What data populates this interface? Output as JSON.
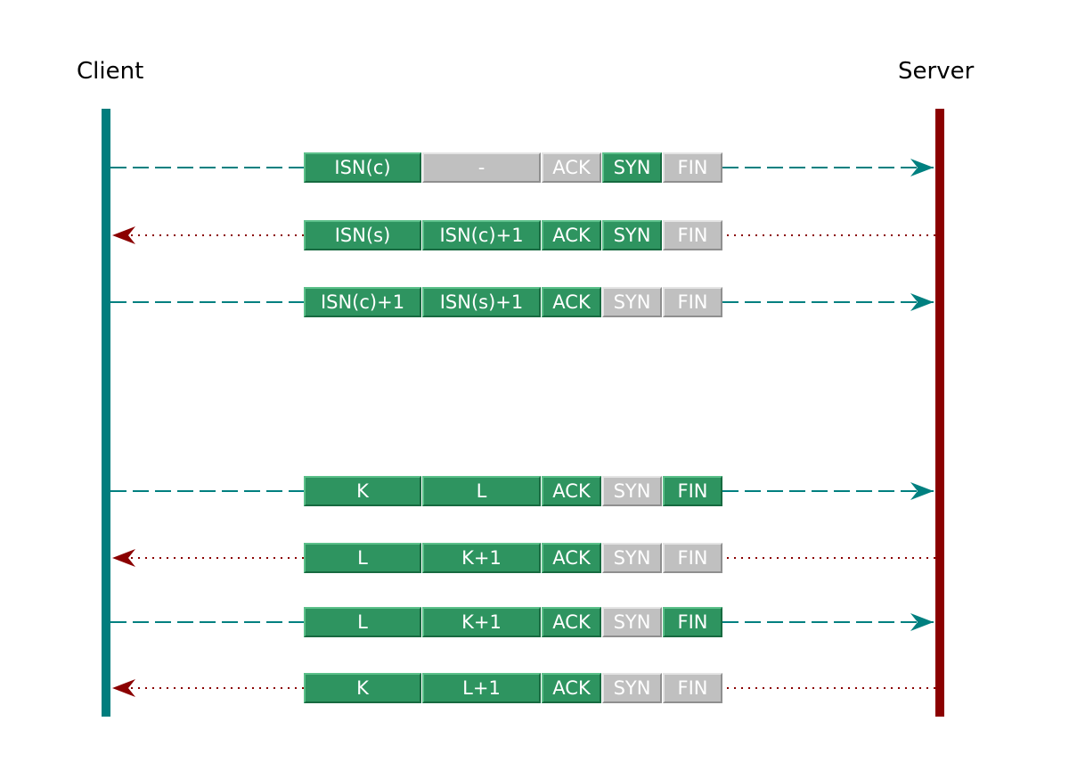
{
  "endpoints": {
    "client": {
      "label": "Client",
      "color": "#007d7d"
    },
    "server": {
      "label": "Server",
      "color": "#8b0000"
    }
  },
  "colors": {
    "field_active": "#2e9460",
    "field_inactive": "#c0c0c0",
    "to_server_arrow": "#008080",
    "to_client_arrow": "#8b0000"
  },
  "flags": [
    "ACK",
    "SYN",
    "FIN"
  ],
  "segments": [
    {
      "direction": "to-server",
      "seq": "ISN(c)",
      "ack": "-",
      "seq_active": true,
      "ack_active": false,
      "ACK": false,
      "SYN": true,
      "FIN": false
    },
    {
      "direction": "to-client",
      "seq": "ISN(s)",
      "ack": "ISN(c)+1",
      "seq_active": true,
      "ack_active": true,
      "ACK": true,
      "SYN": true,
      "FIN": false
    },
    {
      "direction": "to-server",
      "seq": "ISN(c)+1",
      "ack": "ISN(s)+1",
      "seq_active": true,
      "ack_active": true,
      "ACK": true,
      "SYN": false,
      "FIN": false
    },
    {
      "direction": "to-server",
      "seq": "K",
      "ack": "L",
      "seq_active": true,
      "ack_active": true,
      "ACK": true,
      "SYN": false,
      "FIN": true
    },
    {
      "direction": "to-client",
      "seq": "L",
      "ack": "K+1",
      "seq_active": true,
      "ack_active": true,
      "ACK": true,
      "SYN": false,
      "FIN": false
    },
    {
      "direction": "to-server",
      "seq": "L",
      "ack": "K+1",
      "seq_active": true,
      "ack_active": true,
      "ACK": true,
      "SYN": false,
      "FIN": true
    },
    {
      "direction": "to-client",
      "seq": "K",
      "ack": "L+1",
      "seq_active": true,
      "ack_active": true,
      "ACK": true,
      "SYN": false,
      "FIN": false
    }
  ]
}
